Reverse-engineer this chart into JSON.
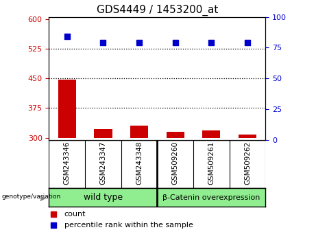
{
  "title": "GDS4449 / 1453200_at",
  "samples": [
    "GSM243346",
    "GSM243347",
    "GSM243348",
    "GSM509260",
    "GSM509261",
    "GSM509262"
  ],
  "bar_values": [
    447,
    322,
    330,
    315,
    318,
    308
  ],
  "scatter_values": [
    84,
    79,
    79,
    79,
    79,
    79
  ],
  "bar_color": "#cc0000",
  "scatter_color": "#0000cc",
  "ylim_left": [
    295,
    605
  ],
  "ylim_right": [
    0,
    100
  ],
  "yticks_left": [
    300,
    375,
    450,
    525,
    600
  ],
  "yticks_right": [
    0,
    25,
    50,
    75,
    100
  ],
  "hlines": [
    375,
    450,
    525
  ],
  "group1_label": "wild type",
  "group2_label": "β-Catenin overexpression",
  "group_color": "#90ee90",
  "genotype_label": "genotype/variation",
  "legend_count_label": "count",
  "legend_pct_label": "percentile rank within the sample",
  "legend_count_color": "#cc0000",
  "legend_pct_color": "#0000cc",
  "left_tick_color": "#cc0000",
  "right_tick_color": "#0000cc",
  "bar_width": 0.5,
  "tick_label_area_color": "#c8c8c8",
  "scatter_size": 30
}
